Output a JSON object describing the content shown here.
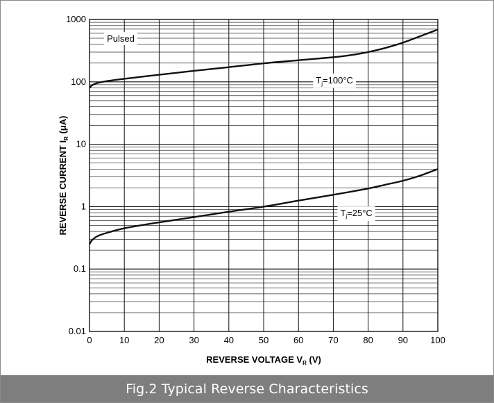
{
  "caption": "Fig.2 Typical Reverse Characteristics",
  "chart_data": {
    "type": "line",
    "title": "",
    "xlabel": {
      "text": "REVERSE VOLTAGE  V",
      "sub": "R",
      "suffix": " (V)"
    },
    "ylabel": {
      "text": "REVERSE CURRENT  I",
      "sub": "R",
      "suffix": " (μA)"
    },
    "xlim": [
      0,
      100
    ],
    "ylim": [
      0.01,
      1000
    ],
    "yscale": "log",
    "grid": true,
    "x_ticks": [
      0,
      10,
      20,
      30,
      40,
      50,
      60,
      70,
      80,
      90,
      100
    ],
    "x_tick_labels": [
      "0",
      "10",
      "20",
      "30",
      "40",
      "50",
      "60",
      "70",
      "80",
      "90",
      "100"
    ],
    "y_ticks": [
      0.01,
      0.1,
      1,
      10,
      100,
      1000
    ],
    "y_tick_labels": [
      "0.01",
      "0.1",
      "1",
      "10",
      "100",
      "1000"
    ],
    "series": [
      {
        "label": {
          "main": "T",
          "sub": "j",
          "rest": "=100°C"
        },
        "color": "#111111",
        "x": [
          0,
          0.5,
          1,
          2,
          3,
          5,
          10,
          20,
          30,
          40,
          50,
          60,
          70,
          75,
          80,
          85,
          90,
          95,
          100
        ],
        "y": [
          80,
          86,
          90,
          95,
          98,
          103,
          112,
          130,
          150,
          172,
          198,
          222,
          248,
          268,
          300,
          350,
          425,
          540,
          690
        ]
      },
      {
        "label": {
          "main": "T",
          "sub": "j",
          "rest": "=25°C"
        },
        "color": "#111111",
        "x": [
          0,
          0.5,
          1,
          2,
          3,
          5,
          10,
          20,
          30,
          40,
          50,
          60,
          70,
          80,
          85,
          90,
          95,
          100
        ],
        "y": [
          0.25,
          0.28,
          0.3,
          0.33,
          0.35,
          0.38,
          0.45,
          0.56,
          0.68,
          0.83,
          1.0,
          1.25,
          1.55,
          1.95,
          2.25,
          2.6,
          3.15,
          4.0
        ]
      }
    ],
    "annotations": [
      {
        "text": "Pulsed",
        "x": 5,
        "y": 500
      },
      {
        "text": {
          "main": "T",
          "sub": "j",
          "rest": "=100°C"
        },
        "x": 65,
        "y": 108
      },
      {
        "text": {
          "main": "T",
          "sub": "j",
          "rest": "=25°C"
        },
        "x": 72,
        "y": 0.8
      }
    ]
  }
}
